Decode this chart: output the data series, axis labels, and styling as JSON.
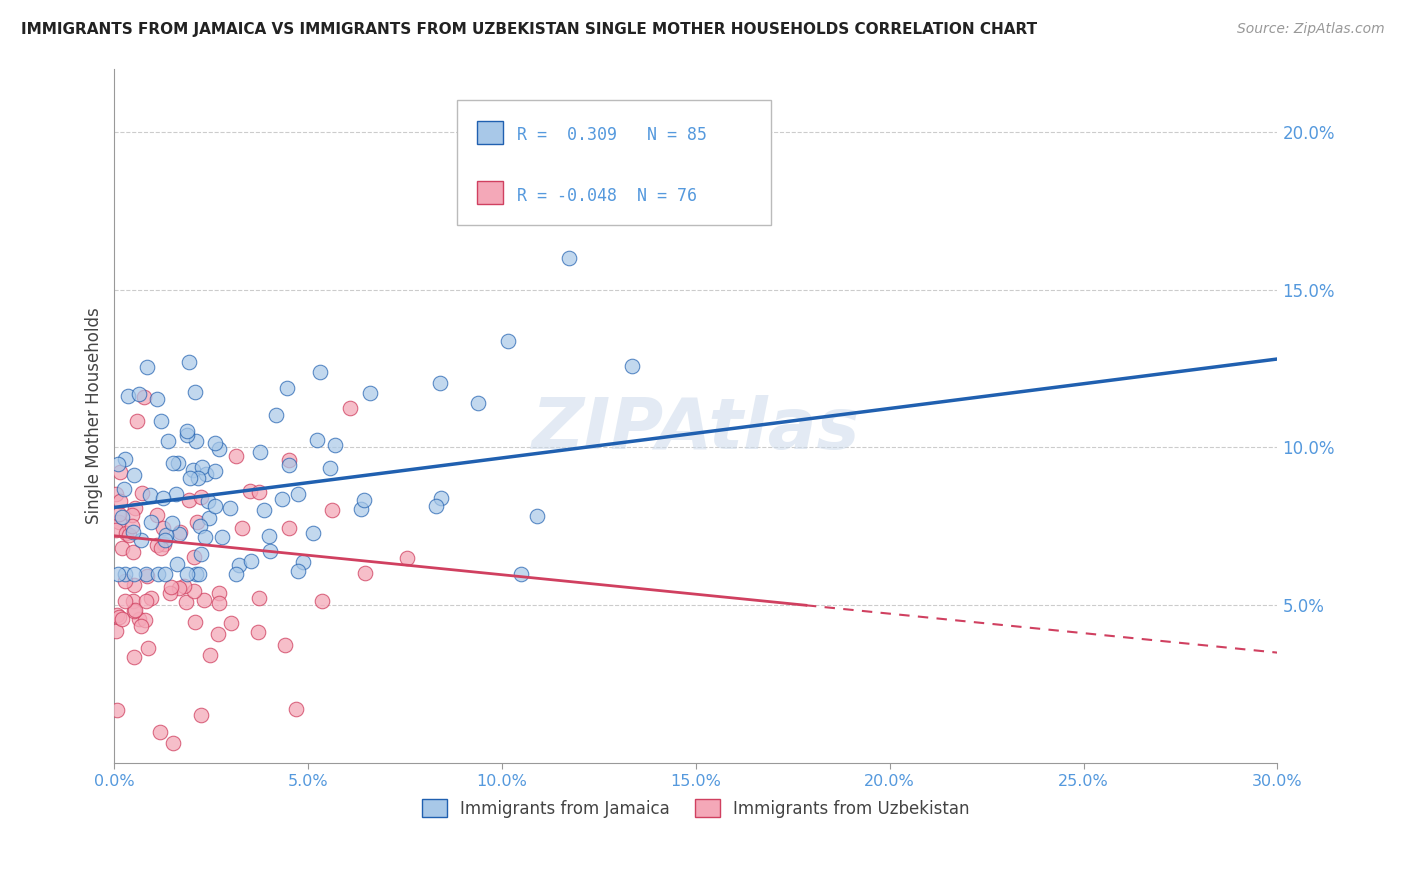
{
  "title": "IMMIGRANTS FROM JAMAICA VS IMMIGRANTS FROM UZBEKISTAN SINGLE MOTHER HOUSEHOLDS CORRELATION CHART",
  "source": "Source: ZipAtlas.com",
  "ylabel": "Single Mother Households",
  "ylabel_right_ticks": [
    "5.0%",
    "10.0%",
    "15.0%",
    "20.0%"
  ],
  "ylabel_right_vals": [
    0.05,
    0.1,
    0.15,
    0.2
  ],
  "xmin": 0.0,
  "xmax": 0.3,
  "ymin": 0.0,
  "ymax": 0.22,
  "jamaica_R": 0.309,
  "jamaica_N": 85,
  "uzbekistan_R": -0.048,
  "uzbekistan_N": 76,
  "jamaica_color": "#a8c8e8",
  "uzbekistan_color": "#f4a8b8",
  "jamaica_line_color": "#2060b0",
  "uzbekistan_line_color": "#d04060",
  "background_color": "#ffffff",
  "grid_color": "#cccccc",
  "watermark": "ZIPAtlas",
  "legend_label_jamaica": "Immigrants from Jamaica",
  "legend_label_uzbekistan": "Immigrants from Uzbekistan",
  "jam_line_x0": 0.0,
  "jam_line_y0": 0.081,
  "jam_line_x1": 0.3,
  "jam_line_y1": 0.128,
  "uzb_line_x0": 0.0,
  "uzb_line_y0": 0.072,
  "uzb_line_x1": 0.3,
  "uzb_line_y1": 0.035
}
